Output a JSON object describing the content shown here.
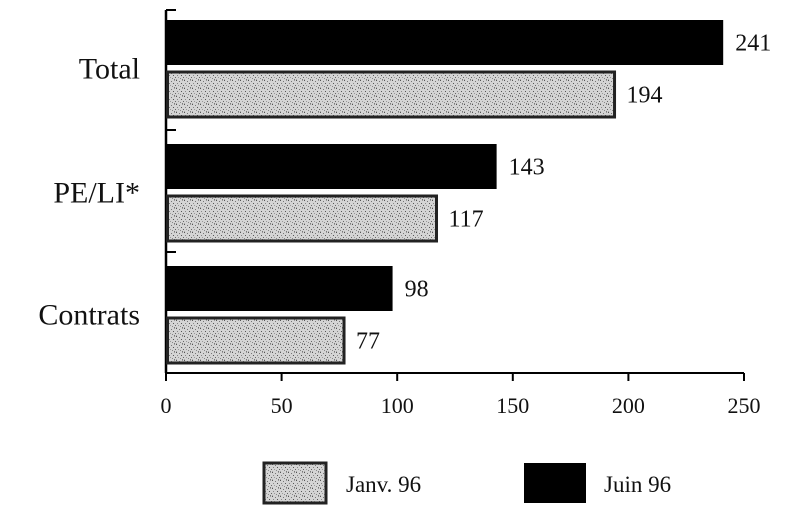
{
  "chart_data": {
    "type": "bar",
    "orientation": "horizontal",
    "categories": [
      "Total",
      "PE/LI*",
      "Contrats"
    ],
    "series": [
      {
        "name": "Juin 96",
        "values": [
          241,
          143,
          98
        ],
        "color": "#000000"
      },
      {
        "name": "Janv. 96",
        "values": [
          194,
          117,
          77
        ],
        "color": "#c8c8c8",
        "pattern": "speckled-grey"
      }
    ],
    "xlim": [
      0,
      250
    ],
    "xticks": [
      0,
      50,
      100,
      150,
      200,
      250
    ],
    "grid": false,
    "legend": {
      "position": "bottom",
      "order": [
        "Janv. 96",
        "Juin 96"
      ]
    }
  }
}
